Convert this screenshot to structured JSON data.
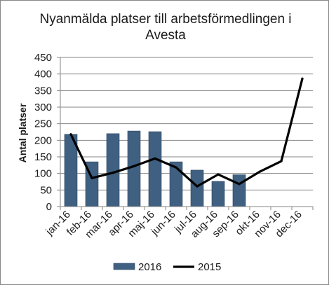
{
  "chart_data": {
    "type": "bar+line",
    "title_lines": [
      "Nyanmälda platser till arbetsförmedlingen i",
      "Avesta"
    ],
    "xlabel": "",
    "ylabel": "Antal platser",
    "ylim": [
      0,
      450
    ],
    "yticks": [
      0,
      50,
      100,
      150,
      200,
      250,
      300,
      350,
      400,
      450
    ],
    "grid": true,
    "legend_position": "bottom",
    "categories": [
      "jan-16",
      "feb-16",
      "mar-16",
      "apr-16",
      "maj-16",
      "jun-16",
      "jul-16",
      "aug-16",
      "sep-16",
      "okt-16",
      "nov-16",
      "dec-16"
    ],
    "series": [
      {
        "name": "2016",
        "kind": "bar",
        "color": "#3f6081",
        "values": [
          218,
          135,
          220,
          228,
          226,
          135,
          110,
          76,
          96,
          null,
          null,
          null
        ]
      },
      {
        "name": "2015",
        "kind": "line",
        "color": "#000000",
        "values": [
          218,
          86,
          102,
          122,
          145,
          118,
          61,
          97,
          68,
          106,
          137,
          386
        ]
      }
    ]
  }
}
